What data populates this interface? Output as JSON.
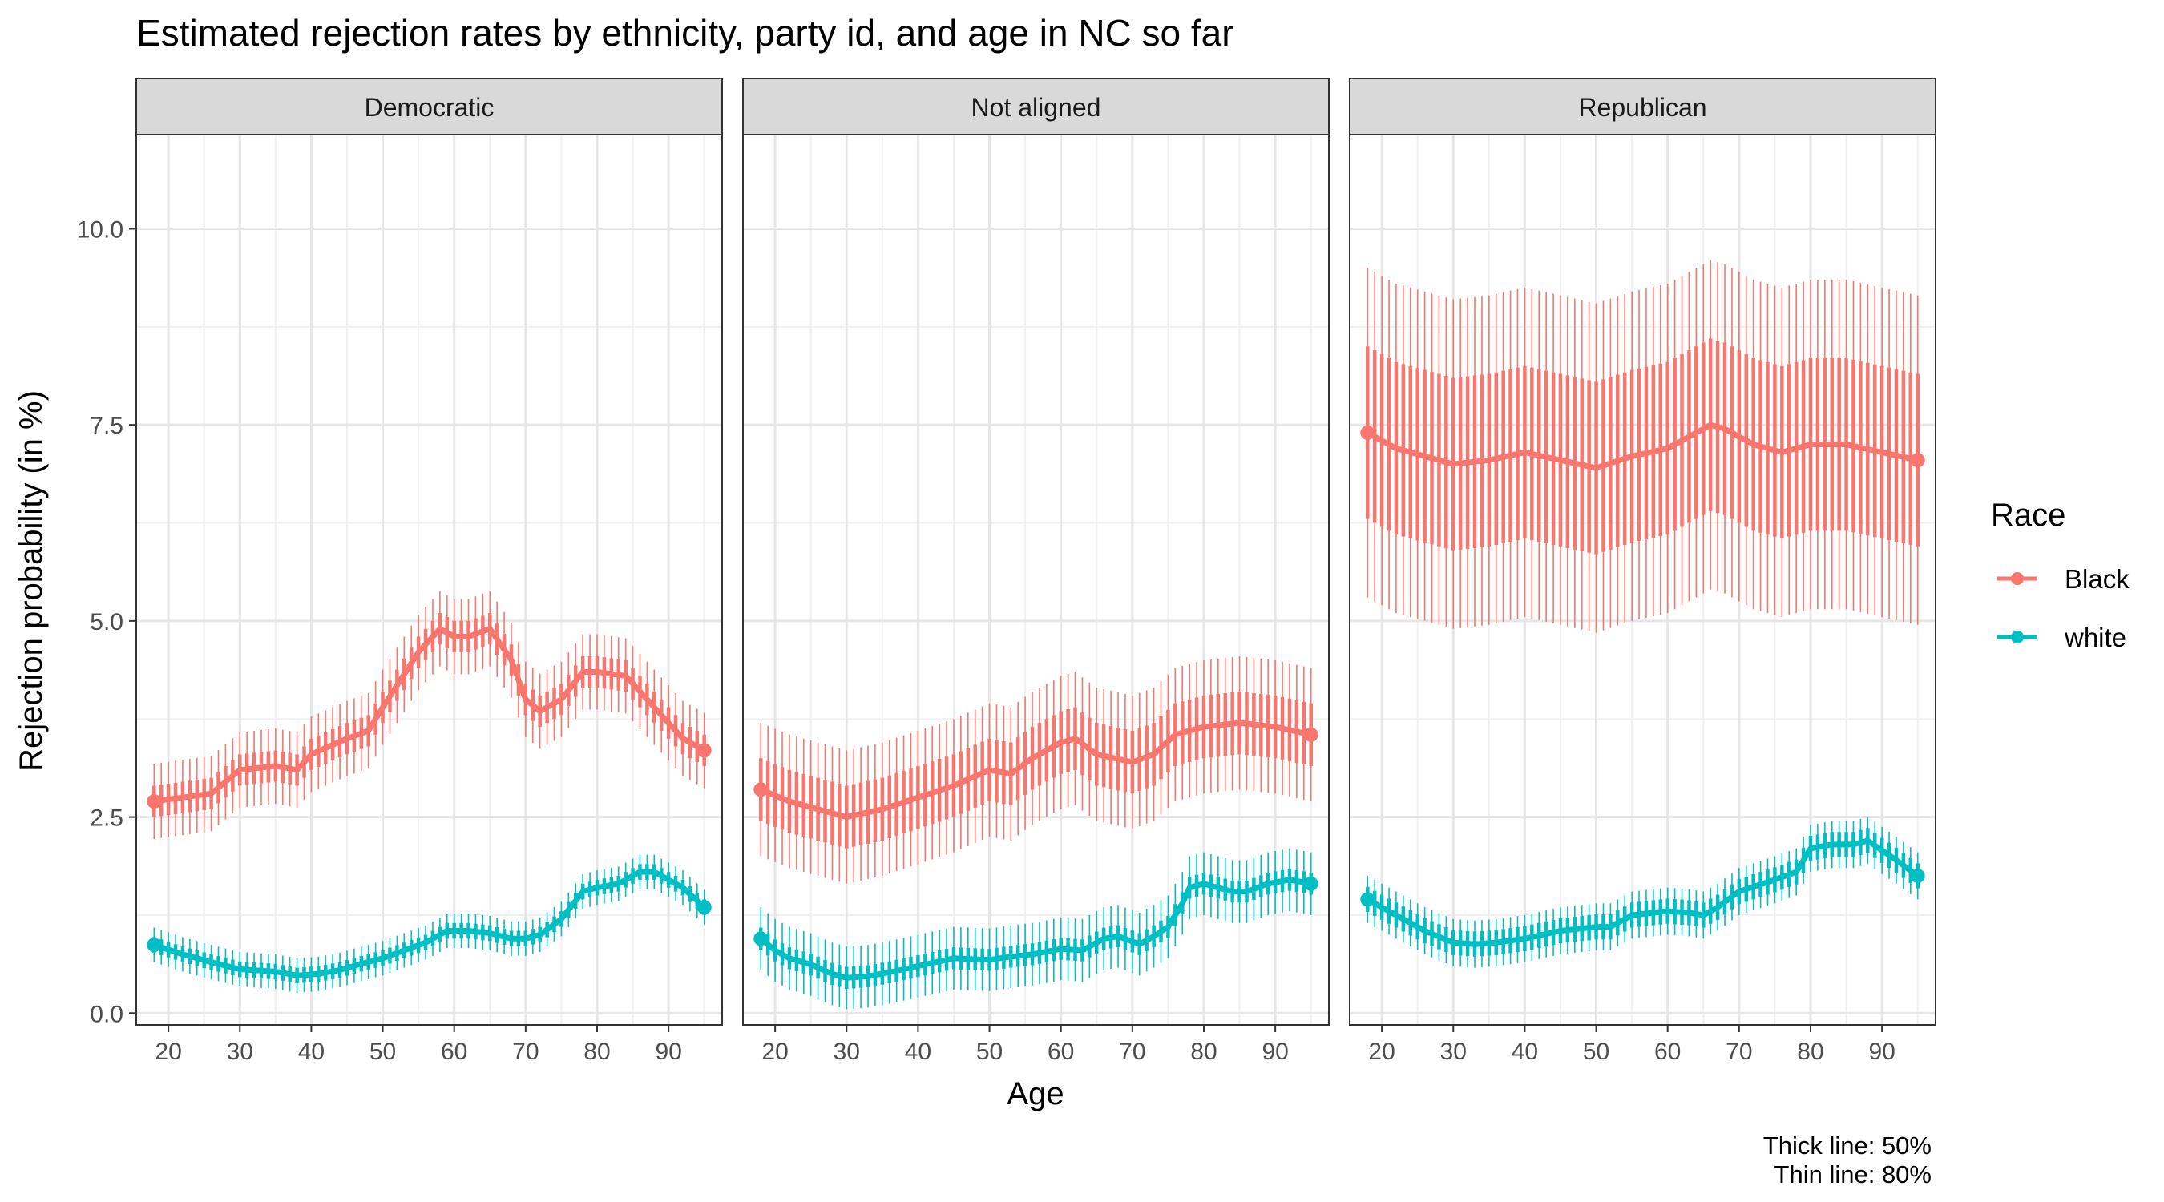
{
  "chart_data": {
    "type": "line",
    "title": "Estimated rejection rates by ethnicity, party id, and age in NC so far",
    "xlabel": "Age",
    "ylabel": "Rejection probability (in %)",
    "xlim": [
      15.5,
      97.5
    ],
    "ylim": [
      -0.15,
      11.2
    ],
    "x_ticks": [
      20,
      30,
      40,
      50,
      60,
      70,
      80,
      90
    ],
    "x_tick_labels": [
      "20",
      "30",
      "40",
      "50",
      "60",
      "70",
      "80",
      "90"
    ],
    "y_ticks": [
      0,
      2.5,
      5,
      7.5,
      10
    ],
    "y_tick_labels": [
      "0.0",
      "2.5",
      "5.0",
      "7.5",
      "10.0"
    ],
    "grid": true,
    "legend": {
      "title": "Race",
      "position": "right",
      "entries": [
        {
          "name": "Black",
          "color": "#F8766D"
        },
        {
          "name": "white",
          "color": "#00BFC4"
        }
      ]
    },
    "caption": [
      "Thick line: 50%",
      "Thin line: 80%"
    ],
    "panels": [
      {
        "label": "Democratic",
        "series": [
          {
            "name": "Black",
            "color": "#F8766D",
            "points": [
              [
                18,
                2.7
              ],
              [
                22,
                2.75
              ],
              [
                26,
                2.8
              ],
              [
                30,
                3.1
              ],
              [
                35,
                3.15
              ],
              [
                38,
                3.1
              ],
              [
                40,
                3.3
              ],
              [
                45,
                3.5
              ],
              [
                48,
                3.6
              ],
              [
                50,
                3.9
              ],
              [
                55,
                4.6
              ],
              [
                58,
                4.9
              ],
              [
                60,
                4.8
              ],
              [
                62,
                4.8
              ],
              [
                65,
                4.9
              ],
              [
                68,
                4.5
              ],
              [
                70,
                4.0
              ],
              [
                72,
                3.85
              ],
              [
                75,
                4.0
              ],
              [
                78,
                4.35
              ],
              [
                80,
                4.35
              ],
              [
                84,
                4.3
              ],
              [
                88,
                3.9
              ],
              [
                92,
                3.5
              ],
              [
                95,
                3.35
              ]
            ],
            "half50": 0.2,
            "half80": 0.48
          },
          {
            "name": "white",
            "color": "#00BFC4",
            "points": [
              [
                18,
                0.87
              ],
              [
                22,
                0.75
              ],
              [
                26,
                0.65
              ],
              [
                30,
                0.56
              ],
              [
                35,
                0.53
              ],
              [
                38,
                0.48
              ],
              [
                41,
                0.5
              ],
              [
                44,
                0.55
              ],
              [
                47,
                0.63
              ],
              [
                50,
                0.7
              ],
              [
                53,
                0.8
              ],
              [
                56,
                0.9
              ],
              [
                59,
                1.05
              ],
              [
                62,
                1.05
              ],
              [
                65,
                1.02
              ],
              [
                68,
                0.95
              ],
              [
                70,
                0.95
              ],
              [
                72,
                1.0
              ],
              [
                75,
                1.2
              ],
              [
                78,
                1.55
              ],
              [
                80,
                1.6
              ],
              [
                83,
                1.65
              ],
              [
                86,
                1.8
              ],
              [
                88,
                1.8
              ],
              [
                92,
                1.6
              ],
              [
                95,
                1.35
              ]
            ],
            "half50": 0.1,
            "half80": 0.22
          }
        ]
      },
      {
        "label": "Not aligned",
        "series": [
          {
            "name": "Black",
            "color": "#F8766D",
            "points": [
              [
                18,
                2.85
              ],
              [
                22,
                2.7
              ],
              [
                26,
                2.6
              ],
              [
                30,
                2.5
              ],
              [
                35,
                2.6
              ],
              [
                40,
                2.75
              ],
              [
                45,
                2.9
              ],
              [
                50,
                3.1
              ],
              [
                53,
                3.05
              ],
              [
                56,
                3.25
              ],
              [
                60,
                3.45
              ],
              [
                62,
                3.5
              ],
              [
                65,
                3.3
              ],
              [
                70,
                3.2
              ],
              [
                73,
                3.3
              ],
              [
                76,
                3.55
              ],
              [
                80,
                3.65
              ],
              [
                85,
                3.7
              ],
              [
                90,
                3.65
              ],
              [
                95,
                3.55
              ]
            ],
            "half50": 0.4,
            "half80": 0.85
          },
          {
            "name": "white",
            "color": "#00BFC4",
            "points": [
              [
                18,
                0.95
              ],
              [
                20,
                0.8
              ],
              [
                22,
                0.7
              ],
              [
                25,
                0.62
              ],
              [
                28,
                0.5
              ],
              [
                30,
                0.45
              ],
              [
                33,
                0.47
              ],
              [
                36,
                0.52
              ],
              [
                40,
                0.6
              ],
              [
                45,
                0.7
              ],
              [
                50,
                0.68
              ],
              [
                53,
                0.72
              ],
              [
                56,
                0.75
              ],
              [
                60,
                0.82
              ],
              [
                63,
                0.8
              ],
              [
                66,
                0.95
              ],
              [
                68,
                0.98
              ],
              [
                71,
                0.88
              ],
              [
                73,
                0.98
              ],
              [
                75,
                1.1
              ],
              [
                77,
                1.4
              ],
              [
                78,
                1.6
              ],
              [
                80,
                1.65
              ],
              [
                82,
                1.6
              ],
              [
                84,
                1.55
              ],
              [
                86,
                1.55
              ],
              [
                89,
                1.65
              ],
              [
                92,
                1.7
              ],
              [
                95,
                1.65
              ]
            ],
            "half50": 0.14,
            "half80": 0.4
          }
        ]
      },
      {
        "label": "Republican",
        "series": [
          {
            "name": "Black",
            "color": "#F8766D",
            "points": [
              [
                18,
                7.4
              ],
              [
                22,
                7.2
              ],
              [
                26,
                7.1
              ],
              [
                30,
                7.0
              ],
              [
                35,
                7.05
              ],
              [
                40,
                7.15
              ],
              [
                45,
                7.05
              ],
              [
                50,
                6.95
              ],
              [
                55,
                7.1
              ],
              [
                60,
                7.2
              ],
              [
                63,
                7.35
              ],
              [
                66,
                7.5
              ],
              [
                68,
                7.45
              ],
              [
                72,
                7.25
              ],
              [
                76,
                7.15
              ],
              [
                80,
                7.25
              ],
              [
                85,
                7.25
              ],
              [
                90,
                7.15
              ],
              [
                95,
                7.05
              ]
            ],
            "half50": 1.1,
            "half80": 2.1
          },
          {
            "name": "white",
            "color": "#00BFC4",
            "points": [
              [
                18,
                1.45
              ],
              [
                22,
                1.25
              ],
              [
                26,
                1.05
              ],
              [
                30,
                0.9
              ],
              [
                33,
                0.88
              ],
              [
                36,
                0.9
              ],
              [
                40,
                0.95
              ],
              [
                45,
                1.05
              ],
              [
                50,
                1.1
              ],
              [
                52,
                1.1
              ],
              [
                55,
                1.25
              ],
              [
                60,
                1.3
              ],
              [
                63,
                1.28
              ],
              [
                65,
                1.25
              ],
              [
                67,
                1.35
              ],
              [
                70,
                1.55
              ],
              [
                75,
                1.7
              ],
              [
                78,
                1.8
              ],
              [
                80,
                2.1
              ],
              [
                83,
                2.15
              ],
              [
                86,
                2.15
              ],
              [
                88,
                2.2
              ],
              [
                92,
                1.95
              ],
              [
                95,
                1.75
              ]
            ],
            "half50": 0.16,
            "half80": 0.3
          }
        ]
      }
    ]
  }
}
